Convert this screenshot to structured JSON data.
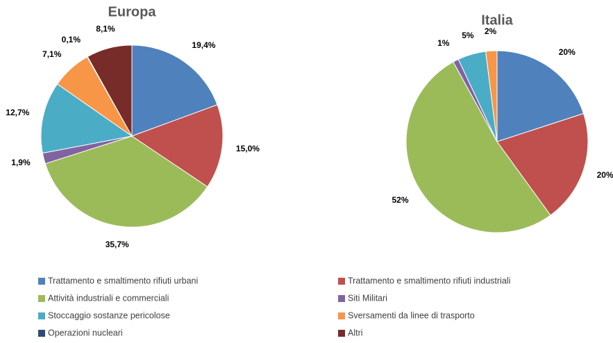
{
  "chart_data": [
    {
      "type": "pie",
      "title": "Europa",
      "categories": [
        "Trattamento e smaltimento rifiuti urbani",
        "Trattamento e smaltimento rifiuti industriali",
        "Attività industriali e commerciali",
        "Siti Militari",
        "Stoccaggio sostanze pericolose",
        "Sversamenti da linee di trasporto",
        "Operazioni nucleari",
        "Altri"
      ],
      "values": [
        19.4,
        15.0,
        35.7,
        1.9,
        12.7,
        7.1,
        0.1,
        8.1
      ],
      "value_labels": [
        "19,4%",
        "15,0%",
        "35,7%",
        "1,9%",
        "12,7%",
        "7,1%",
        "0,1%",
        "8,1%"
      ],
      "colors": [
        "#4f81bd",
        "#c0504d",
        "#9bbb59",
        "#8064a2",
        "#4bacc6",
        "#f79646",
        "#2c4d75",
        "#772c2a"
      ]
    },
    {
      "type": "pie",
      "title": "Italia",
      "values": [
        20,
        20,
        52,
        1,
        5,
        2
      ],
      "value_labels": [
        "20%",
        "20%",
        "52%",
        "1%",
        "5%",
        "2%"
      ],
      "colors": [
        "#4f81bd",
        "#c0504d",
        "#9bbb59",
        "#8064a2",
        "#4bacc6",
        "#f79646"
      ]
    }
  ]
}
